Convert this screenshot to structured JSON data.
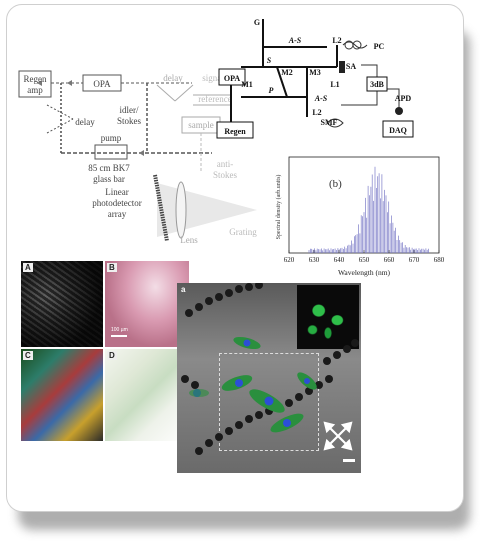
{
  "setup_left": {
    "boxes": [
      "Regen\namp",
      "OPA"
    ],
    "labels": {
      "delay_top": "delay",
      "delay_left": "delay",
      "idler": "idler/",
      "stokes": "Stokes",
      "pump": "pump",
      "glass": "85 cm BK7",
      "glass2": "glass bar",
      "signal": "signal",
      "reference": "reference",
      "sample": "sample",
      "anti": "anti-",
      "stokes2": "Stokes",
      "linear": "Linear",
      "photodetector": "photodetector",
      "array": "array",
      "lens": "Lens",
      "grating": "Grating"
    }
  },
  "setup_right": {
    "boxes": {
      "opa": "OPA",
      "regen": "Regen",
      "daq": "DAQ"
    },
    "labels": {
      "g": "G",
      "as_top": "A-S",
      "l2_top": "L2",
      "pc": "PC",
      "sa": "SA",
      "l1": "L1",
      "db": "3dB",
      "apd": "APD",
      "m1": "M1",
      "m2": "M2",
      "m3": "M3",
      "s": "S",
      "p": "P",
      "as_mid": "A-S",
      "l2_bot": "L2",
      "smf": "SMF"
    }
  },
  "chart_data": {
    "type": "line",
    "annotation": "(b)",
    "xlabel": "Wavelength (nm)",
    "ylabel": "Spectral density (arb.units)",
    "xlim": [
      620,
      680
    ],
    "x_ticks": [
      "620",
      "630",
      "640",
      "650",
      "660",
      "670",
      "680"
    ],
    "peak_wavelength": 655,
    "line_color": "#7d7dc8"
  },
  "micro": {
    "a": "A",
    "b": "B",
    "c": "C",
    "d": "D",
    "b_scale": "100 µm"
  },
  "cell_image": {
    "label": "a"
  }
}
